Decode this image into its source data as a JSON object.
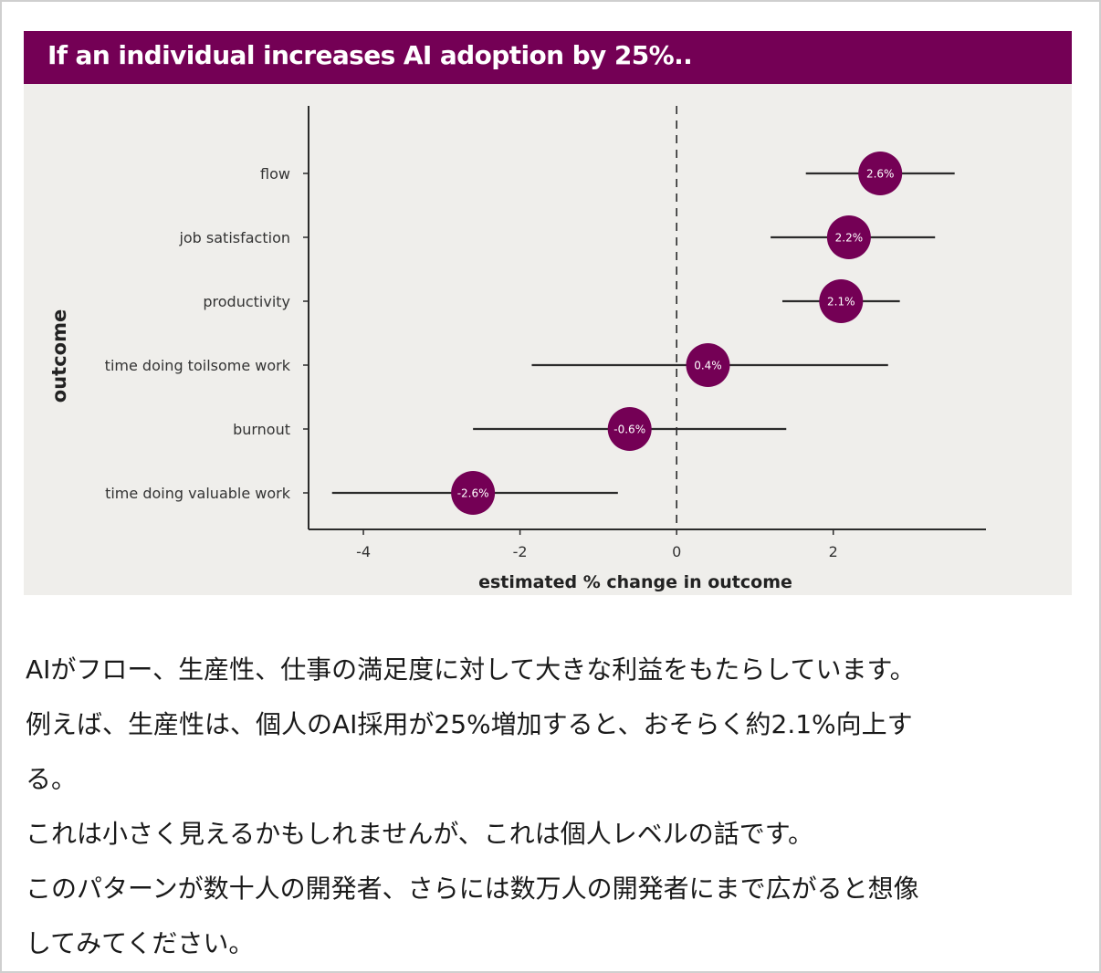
{
  "chart_data": {
    "type": "scatter",
    "title": "If an individual increases AI adoption by 25%..",
    "xlabel": "estimated % change in outcome",
    "ylabel": "outcome",
    "xlim": [
      -4.7,
      3.95
    ],
    "xticks": [
      -4,
      -2,
      0,
      2
    ],
    "xtick_labels": [
      "-4",
      "-2",
      "0",
      "2"
    ],
    "reference_line": {
      "x": 0,
      "style": "dashed"
    },
    "points": [
      {
        "category": "flow",
        "estimate": 2.6,
        "ci_low": 1.65,
        "ci_high": 3.55,
        "label": "2.6%"
      },
      {
        "category": "job satisfaction",
        "estimate": 2.2,
        "ci_low": 1.2,
        "ci_high": 3.3,
        "label": "2.2%"
      },
      {
        "category": "productivity",
        "estimate": 2.1,
        "ci_low": 1.35,
        "ci_high": 2.85,
        "label": "2.1%"
      },
      {
        "category": "time doing toilsome work",
        "estimate": 0.4,
        "ci_low": -1.85,
        "ci_high": 2.7,
        "label": "0.4%"
      },
      {
        "category": "burnout",
        "estimate": -0.6,
        "ci_low": -2.6,
        "ci_high": 1.4,
        "label": "-0.6%"
      },
      {
        "category": "time doing valuable work",
        "estimate": -2.6,
        "ci_low": -4.4,
        "ci_high": -0.75,
        "label": "-2.6%"
      }
    ],
    "grid": false,
    "colors": {
      "marker": "#740055",
      "banner": "#740055",
      "background": "#efeeeb",
      "line": "#2b2b2b"
    }
  },
  "body": {
    "lines": [
      "AIがフロー、生産性、仕事の満足度に対して大きな利益をもたらしています。",
      "例えば、生産性は、個人のAI採用が25%増加すると、おそらく約2.1%向上す",
      "る。",
      "これは小さく見えるかもしれませんが、これは個人レベルの話です。",
      "このパターンが数十人の開発者、さらには数万人の開発者にまで広がると想像",
      "してみてください。"
    ]
  }
}
